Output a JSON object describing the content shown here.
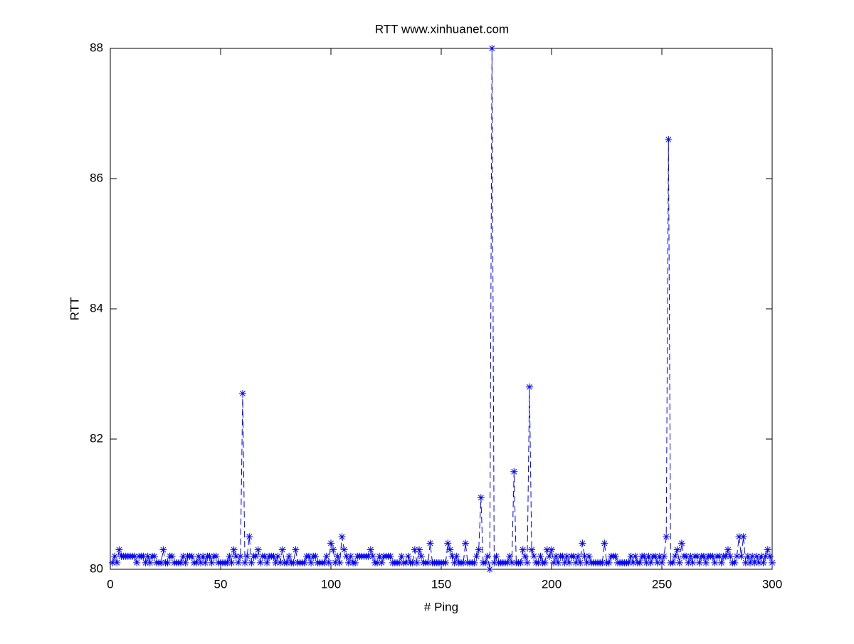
{
  "chart_data": {
    "type": "line",
    "title": "RTT www.xinhuanet.com",
    "xlabel": "# Ping",
    "ylabel": "RTT",
    "color": "#0000ff",
    "x": [
      1,
      2,
      3,
      4,
      5,
      6,
      7,
      8,
      9,
      10,
      11,
      12,
      13,
      14,
      15,
      16,
      17,
      18,
      19,
      20,
      21,
      22,
      23,
      24,
      25,
      26,
      27,
      28,
      29,
      30,
      31,
      32,
      33,
      34,
      35,
      36,
      37,
      38,
      39,
      40,
      41,
      42,
      43,
      44,
      45,
      46,
      47,
      48,
      49,
      50,
      51,
      52,
      53,
      54,
      55,
      56,
      57,
      58,
      59,
      60,
      61,
      62,
      63,
      64,
      65,
      66,
      67,
      68,
      69,
      70,
      71,
      72,
      73,
      74,
      75,
      76,
      77,
      78,
      79,
      80,
      81,
      82,
      83,
      84,
      85,
      86,
      87,
      88,
      89,
      90,
      91,
      92,
      93,
      94,
      95,
      96,
      97,
      98,
      99,
      100,
      101,
      102,
      103,
      104,
      105,
      106,
      107,
      108,
      109,
      110,
      111,
      112,
      113,
      114,
      115,
      116,
      117,
      118,
      119,
      120,
      121,
      122,
      123,
      124,
      125,
      126,
      127,
      128,
      129,
      130,
      131,
      132,
      133,
      134,
      135,
      136,
      137,
      138,
      139,
      140,
      141,
      142,
      143,
      144,
      145,
      146,
      147,
      148,
      149,
      150,
      151,
      152,
      153,
      154,
      155,
      156,
      157,
      158,
      159,
      160,
      161,
      162,
      163,
      164,
      165,
      166,
      167,
      168,
      169,
      170,
      171,
      172,
      173,
      174,
      175,
      176,
      177,
      178,
      179,
      180,
      181,
      182,
      183,
      184,
      185,
      186,
      187,
      188,
      189,
      190,
      191,
      192,
      193,
      194,
      195,
      196,
      197,
      198,
      199,
      200,
      201,
      202,
      203,
      204,
      205,
      206,
      207,
      208,
      209,
      210,
      211,
      212,
      213,
      214,
      215,
      216,
      217,
      218,
      219,
      220,
      221,
      222,
      223,
      224,
      225,
      226,
      227,
      228,
      229,
      230,
      231,
      232,
      233,
      234,
      235,
      236,
      237,
      238,
      239,
      240,
      241,
      242,
      243,
      244,
      245,
      246,
      247,
      248,
      249,
      250,
      251,
      252,
      253,
      254,
      255,
      256,
      257,
      258,
      259,
      260,
      261,
      262,
      263,
      264,
      265,
      266,
      267,
      268,
      269,
      270,
      271,
      272,
      273,
      274,
      275,
      276,
      277,
      278,
      279,
      280,
      281,
      282,
      283,
      284,
      285,
      286,
      287,
      288,
      289,
      290,
      291,
      292,
      293,
      294,
      295,
      296,
      297,
      298,
      299,
      300
    ],
    "values": [
      80.1,
      80.2,
      80.1,
      80.3,
      80.2,
      80.2,
      80.2,
      80.2,
      80.2,
      80.2,
      80.2,
      80.1,
      80.2,
      80.2,
      80.2,
      80.1,
      80.2,
      80.1,
      80.2,
      80.2,
      80.1,
      80.1,
      80.1,
      80.3,
      80.1,
      80.1,
      80.2,
      80.2,
      80.1,
      80.1,
      80.1,
      80.1,
      80.2,
      80.1,
      80.2,
      80.2,
      80.2,
      80.1,
      80.1,
      80.2,
      80.1,
      80.2,
      80.1,
      80.2,
      80.2,
      80.1,
      80.2,
      80.2,
      80.1,
      80.1,
      80.1,
      80.1,
      80.1,
      80.2,
      80.1,
      80.3,
      80.2,
      80.1,
      80.2,
      82.7,
      80.1,
      80.2,
      80.5,
      80.1,
      80.2,
      80.2,
      80.3,
      80.1,
      80.2,
      80.2,
      80.1,
      80.2,
      80.2,
      80.2,
      80.1,
      80.2,
      80.1,
      80.3,
      80.1,
      80.1,
      80.2,
      80.1,
      80.1,
      80.3,
      80.1,
      80.1,
      80.1,
      80.1,
      80.2,
      80.2,
      80.1,
      80.2,
      80.2,
      80.1,
      80.1,
      80.1,
      80.1,
      80.2,
      80.1,
      80.4,
      80.3,
      80.1,
      80.2,
      80.1,
      80.5,
      80.3,
      80.2,
      80.1,
      80.2,
      80.1,
      80.1,
      80.2,
      80.2,
      80.2,
      80.2,
      80.2,
      80.2,
      80.3,
      80.2,
      80.1,
      80.1,
      80.2,
      80.1,
      80.2,
      80.2,
      80.2,
      80.2,
      80.1,
      80.1,
      80.1,
      80.1,
      80.2,
      80.1,
      80.1,
      80.2,
      80.1,
      80.1,
      80.3,
      80.1,
      80.3,
      80.2,
      80.1,
      80.1,
      80.1,
      80.4,
      80.1,
      80.1,
      80.1,
      80.1,
      80.1,
      80.1,
      80.1,
      80.4,
      80.3,
      80.2,
      80.1,
      80.2,
      80.1,
      80.1,
      80.1,
      80.4,
      80.1,
      80.1,
      80.1,
      80.1,
      80.2,
      80.3,
      81.1,
      80.1,
      80.1,
      80.2,
      80.0,
      88.0,
      80.1,
      80.2,
      80.1,
      80.1,
      80.1,
      80.1,
      80.1,
      80.2,
      80.1,
      81.5,
      80.1,
      80.1,
      80.1,
      80.3,
      80.2,
      80.1,
      82.8,
      80.3,
      80.2,
      80.1,
      80.1,
      80.2,
      80.1,
      80.1,
      80.3,
      80.2,
      80.3,
      80.1,
      80.2,
      80.1,
      80.2,
      80.2,
      80.1,
      80.2,
      80.1,
      80.2,
      80.2,
      80.1,
      80.2,
      80.1,
      80.4,
      80.2,
      80.1,
      80.2,
      80.1,
      80.1,
      80.1,
      80.1,
      80.1,
      80.1,
      80.4,
      80.1,
      80.1,
      80.2,
      80.2,
      80.2,
      80.1,
      80.1,
      80.1,
      80.1,
      80.1,
      80.1,
      80.2,
      80.1,
      80.2,
      80.1,
      80.1,
      80.2,
      80.2,
      80.1,
      80.2,
      80.1,
      80.2,
      80.2,
      80.1,
      80.2,
      80.1,
      80.2,
      80.5,
      86.6,
      80.1,
      80.1,
      80.2,
      80.3,
      80.1,
      80.4,
      80.2,
      80.2,
      80.1,
      80.2,
      80.1,
      80.2,
      80.2,
      80.1,
      80.2,
      80.2,
      80.1,
      80.2,
      80.2,
      80.2,
      80.1,
      80.2,
      80.2,
      80.1,
      80.2,
      80.2,
      80.3,
      80.2,
      80.1,
      80.1,
      80.2,
      80.5,
      80.2,
      80.5,
      80.1,
      80.2,
      80.1,
      80.2,
      80.1,
      80.2,
      80.1,
      80.2,
      80.1,
      80.2,
      80.3,
      80.2,
      80.1
    ],
    "xlim": [
      0,
      300
    ],
    "xticks": [
      0,
      50,
      100,
      150,
      200,
      250,
      300
    ],
    "ylim": [
      80,
      88
    ],
    "yticks": [
      80,
      82,
      84,
      86,
      88
    ],
    "grid": false
  }
}
